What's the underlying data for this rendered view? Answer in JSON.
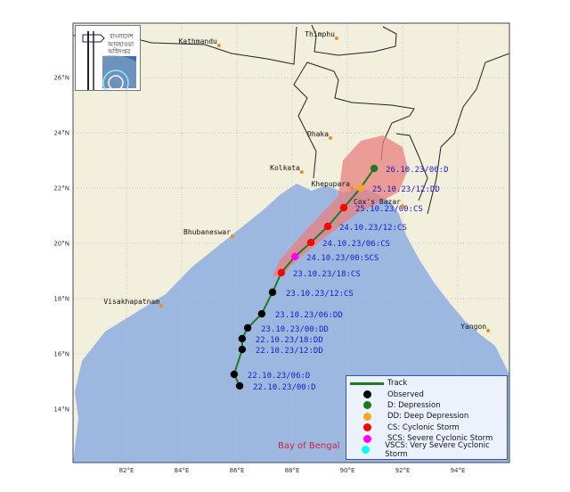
{
  "map": {
    "lon_ticks": [
      "82°E",
      "84°E",
      "86°E",
      "88°E",
      "90°E",
      "92°E",
      "94°E"
    ],
    "lat_ticks": [
      "26°N",
      "24°N",
      "22°N",
      "20°N",
      "18°N",
      "16°N",
      "14°N"
    ],
    "sea_label": "Bay of Bengal",
    "colors": {
      "land": "#f2efdc",
      "sea": "#9db8e0",
      "cone": "#e88080",
      "track": "#1f7a1f",
      "label": "#1a1acc",
      "city": "#f08c1a"
    },
    "cities": [
      {
        "name": "Kathmandu",
        "lon": 85.35,
        "lat": 27.16
      },
      {
        "name": "Thimphu",
        "lon": 89.61,
        "lat": 27.42
      },
      {
        "name": "Dhaka",
        "lon": 89.39,
        "lat": 23.81
      },
      {
        "name": "Kolkata",
        "lon": 88.35,
        "lat": 22.58
      },
      {
        "name": "Khepupara",
        "lon": 90.16,
        "lat": 22.0
      },
      {
        "name": "Cox's Bazar",
        "lon": 92.0,
        "lat": 21.35
      },
      {
        "name": "Bhubaneswar",
        "lon": 85.84,
        "lat": 20.26
      },
      {
        "name": "Visakhapatnam",
        "lon": 83.26,
        "lat": 17.74
      },
      {
        "name": "Yangon",
        "lon": 95.1,
        "lat": 16.84
      }
    ],
    "track": [
      {
        "label": "22.10.23/00:D",
        "cat": "observed",
        "lon": 86.1,
        "lat": 14.84
      },
      {
        "label": "22.10.23/06:D",
        "cat": "observed",
        "lon": 85.9,
        "lat": 15.26
      },
      {
        "label": "22.10.23/12:DD",
        "cat": "observed",
        "lon": 86.19,
        "lat": 16.16
      },
      {
        "label": "22.10.23/18:DD",
        "cat": "observed",
        "lon": 86.19,
        "lat": 16.55
      },
      {
        "label": "23.10.23/00:DD",
        "cat": "observed",
        "lon": 86.39,
        "lat": 16.94
      },
      {
        "label": "23.10.23/06:DD",
        "cat": "observed",
        "lon": 86.9,
        "lat": 17.45
      },
      {
        "label": "23.10.23/12:CS",
        "cat": "observed",
        "lon": 87.29,
        "lat": 18.23
      },
      {
        "label": "23.10.23/18:CS",
        "cat": "CS",
        "lon": 87.61,
        "lat": 18.94
      },
      {
        "label": "24.10.23/00:SCS",
        "cat": "SCS",
        "lon": 88.1,
        "lat": 19.52
      },
      {
        "label": "24.10.23/06:CS",
        "cat": "CS",
        "lon": 88.68,
        "lat": 20.03
      },
      {
        "label": "24.10.23/12:CS",
        "cat": "CS",
        "lon": 89.29,
        "lat": 20.61
      },
      {
        "label": "25.10.23/00:CS",
        "cat": "CS",
        "lon": 89.87,
        "lat": 21.29
      },
      {
        "label": "25.10.23/12:DD",
        "cat": "DD",
        "lon": 90.48,
        "lat": 22.0
      },
      {
        "label": "26.10.23/00:D",
        "cat": "D",
        "lon": 90.97,
        "lat": 22.71
      }
    ]
  },
  "legend": {
    "items": [
      {
        "label": "Track",
        "symbol": "line",
        "color": "#1f7a1f"
      },
      {
        "label": "Observed",
        "symbol": "dot",
        "color": "#000000"
      },
      {
        "label": "D: Depression",
        "symbol": "dot",
        "color": "#1f7a1f"
      },
      {
        "label": "DD: Deep Depression",
        "symbol": "dot",
        "color": "#f5a623"
      },
      {
        "label": "CS: Cyclonic Storm",
        "symbol": "dot",
        "color": "#ff0000"
      },
      {
        "label": "SCS: Severe Cyclonic Storm",
        "symbol": "dot",
        "color": "#ff00ff"
      },
      {
        "label": "VSCS: Very Severe Cyclonic Storm",
        "symbol": "dot",
        "color": "#00ffff"
      }
    ]
  },
  "logo": {
    "text": "বাংলাদেশ আবহাওয়া অধিদপ্তর"
  }
}
